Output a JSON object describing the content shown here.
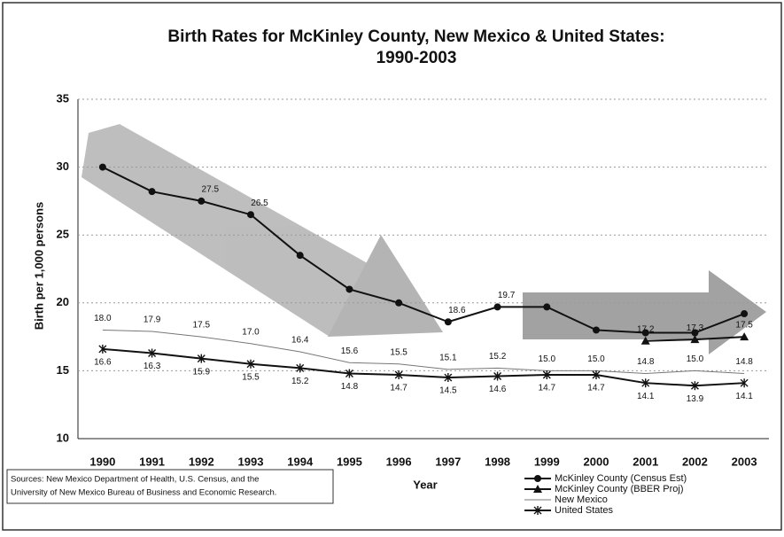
{
  "chart_data": {
    "type": "line",
    "title": [
      "Birth Rates for McKinley County, New Mexico & United States:",
      "1990-2003"
    ],
    "ylabel": "Birth per 1,000 persons",
    "xlabel": "Year",
    "categories": [
      "1990",
      "1991",
      "1992",
      "1993",
      "1994",
      "1995",
      "1996",
      "1997",
      "1998",
      "1999",
      "2000",
      "2001",
      "2002",
      "2003"
    ],
    "ylim": [
      10,
      35
    ],
    "yticks": [
      10,
      15,
      20,
      25,
      30,
      35
    ],
    "grid": true,
    "series": [
      {
        "name": "McKinley County (Census Est)",
        "marker": "circle",
        "color": "#111111",
        "values": [
          30.0,
          28.2,
          27.5,
          26.5,
          23.5,
          21.0,
          20.0,
          18.6,
          19.7,
          19.7,
          18.0,
          17.8,
          17.8,
          19.2
        ],
        "value_labels": [
          null,
          null,
          "27.5",
          "26.5",
          null,
          null,
          null,
          "18.6",
          "19.7",
          null,
          null,
          null,
          null,
          null
        ]
      },
      {
        "name": "McKinley County (BBER Proj)",
        "marker": "triangle",
        "color": "#111111",
        "values": [
          null,
          null,
          null,
          null,
          null,
          null,
          null,
          null,
          null,
          null,
          null,
          17.2,
          17.3,
          17.5
        ],
        "value_labels": [
          null,
          null,
          null,
          null,
          null,
          null,
          null,
          null,
          null,
          null,
          null,
          "17.2",
          "17.3",
          "17.5"
        ]
      },
      {
        "name": "New Mexico",
        "marker": "none",
        "color": "#777777",
        "values": [
          18.0,
          17.9,
          17.5,
          17.0,
          16.4,
          15.6,
          15.5,
          15.1,
          15.2,
          15.0,
          15.0,
          14.8,
          15.0,
          14.8
        ],
        "value_labels": [
          "18.0",
          "17.9",
          "17.5",
          "17.0",
          "16.4",
          "15.6",
          "15.5",
          "15.1",
          "15.2",
          "15.0",
          "15.0",
          "14.8",
          "15.0",
          "14.8"
        ]
      },
      {
        "name": "United States",
        "marker": "x",
        "color": "#111111",
        "values": [
          16.6,
          16.3,
          15.9,
          15.5,
          15.2,
          14.8,
          14.7,
          14.5,
          14.6,
          14.7,
          14.7,
          14.1,
          13.9,
          14.1
        ],
        "value_labels": [
          "16.6",
          "16.3",
          "15.9",
          "15.5",
          "15.2",
          "14.8",
          "14.7",
          "14.5",
          "14.6",
          "14.7",
          "14.7",
          "14.1",
          "13.9",
          "14.1"
        ]
      }
    ],
    "source": [
      "Sources: New Mexico Department of Health, U.S. Census, and the",
      "University of New Mexico Bureau of Business and Economic Research."
    ]
  }
}
